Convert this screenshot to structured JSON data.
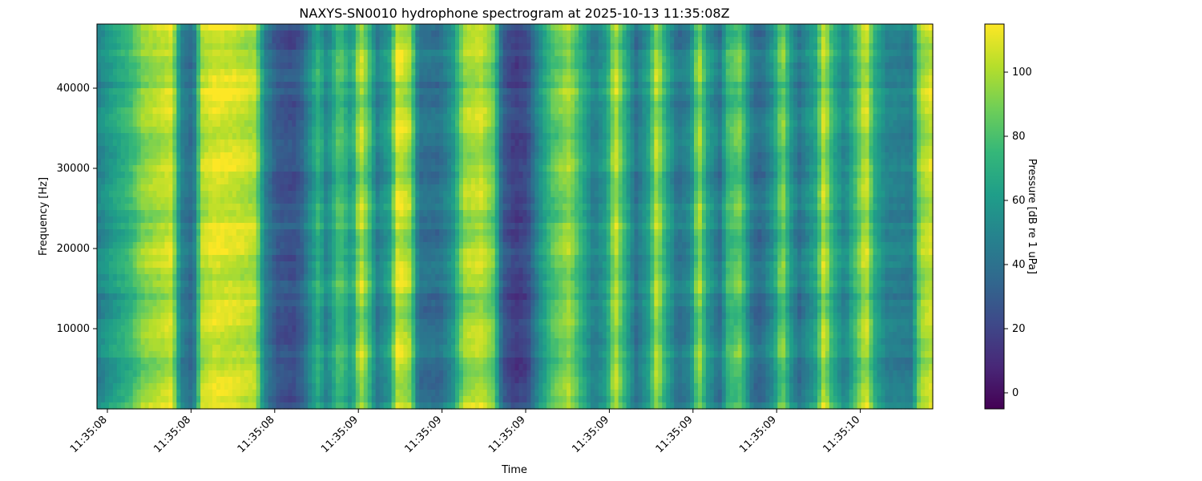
{
  "chart_data": {
    "type": "heatmap",
    "title": "NAXYS-SN0010 hydrophone spectrogram at 2025-10-13 11:35:08Z",
    "xlabel": "Time",
    "ylabel": "Frequency [Hz]",
    "ylim": [
      0,
      48000
    ],
    "x_tick_labels": [
      "11:35:08",
      "11:35:08",
      "11:35:08",
      "11:35:09",
      "11:35:09",
      "11:35:09",
      "11:35:09",
      "11:35:09",
      "11:35:09",
      "11:35:10"
    ],
    "y_ticks": [
      10000,
      20000,
      30000,
      40000
    ],
    "colorbar": {
      "label": "Pressure [dB re 1 uPa]",
      "range": [
        -5,
        115
      ],
      "ticks": [
        0,
        20,
        40,
        60,
        80,
        100
      ],
      "colormap": "viridis"
    },
    "time_profile_db": [
      {
        "t": 0.0,
        "db": 48
      },
      {
        "t": 0.02,
        "db": 62
      },
      {
        "t": 0.04,
        "db": 74
      },
      {
        "t": 0.055,
        "db": 92
      },
      {
        "t": 0.09,
        "db": 105
      },
      {
        "t": 0.1,
        "db": 48
      },
      {
        "t": 0.115,
        "db": 35
      },
      {
        "t": 0.125,
        "db": 100
      },
      {
        "t": 0.14,
        "db": 108
      },
      {
        "t": 0.165,
        "db": 106
      },
      {
        "t": 0.19,
        "db": 100
      },
      {
        "t": 0.2,
        "db": 50
      },
      {
        "t": 0.215,
        "db": 28
      },
      {
        "t": 0.235,
        "db": 24
      },
      {
        "t": 0.245,
        "db": 32
      },
      {
        "t": 0.265,
        "db": 72
      },
      {
        "t": 0.275,
        "db": 48
      },
      {
        "t": 0.29,
        "db": 82
      },
      {
        "t": 0.305,
        "db": 58
      },
      {
        "t": 0.315,
        "db": 104
      },
      {
        "t": 0.325,
        "db": 80
      },
      {
        "t": 0.335,
        "db": 45
      },
      {
        "t": 0.35,
        "db": 62
      },
      {
        "t": 0.36,
        "db": 108
      },
      {
        "t": 0.375,
        "db": 95
      },
      {
        "t": 0.385,
        "db": 40
      },
      {
        "t": 0.41,
        "db": 38
      },
      {
        "t": 0.425,
        "db": 55
      },
      {
        "t": 0.44,
        "db": 96
      },
      {
        "t": 0.46,
        "db": 102
      },
      {
        "t": 0.475,
        "db": 85
      },
      {
        "t": 0.485,
        "db": 30
      },
      {
        "t": 0.5,
        "db": 16
      },
      {
        "t": 0.515,
        "db": 22
      },
      {
        "t": 0.53,
        "db": 55
      },
      {
        "t": 0.545,
        "db": 80
      },
      {
        "t": 0.565,
        "db": 96
      },
      {
        "t": 0.58,
        "db": 70
      },
      {
        "t": 0.595,
        "db": 45
      },
      {
        "t": 0.61,
        "db": 62
      },
      {
        "t": 0.62,
        "db": 104
      },
      {
        "t": 0.63,
        "db": 75
      },
      {
        "t": 0.645,
        "db": 40
      },
      {
        "t": 0.66,
        "db": 62
      },
      {
        "t": 0.67,
        "db": 102
      },
      {
        "t": 0.68,
        "db": 70
      },
      {
        "t": 0.695,
        "db": 40
      },
      {
        "t": 0.71,
        "db": 50
      },
      {
        "t": 0.72,
        "db": 98
      },
      {
        "t": 0.73,
        "db": 62
      },
      {
        "t": 0.745,
        "db": 40
      },
      {
        "t": 0.755,
        "db": 75
      },
      {
        "t": 0.77,
        "db": 85
      },
      {
        "t": 0.785,
        "db": 40
      },
      {
        "t": 0.795,
        "db": 36
      },
      {
        "t": 0.81,
        "db": 58
      },
      {
        "t": 0.82,
        "db": 92
      },
      {
        "t": 0.83,
        "db": 58
      },
      {
        "t": 0.84,
        "db": 40
      },
      {
        "t": 0.86,
        "db": 64
      },
      {
        "t": 0.87,
        "db": 104
      },
      {
        "t": 0.88,
        "db": 70
      },
      {
        "t": 0.895,
        "db": 48
      },
      {
        "t": 0.91,
        "db": 82
      },
      {
        "t": 0.92,
        "db": 106
      },
      {
        "t": 0.93,
        "db": 68
      },
      {
        "t": 0.945,
        "db": 48
      },
      {
        "t": 0.975,
        "db": 45
      },
      {
        "t": 0.985,
        "db": 95
      },
      {
        "t": 1.0,
        "db": 105
      }
    ]
  }
}
